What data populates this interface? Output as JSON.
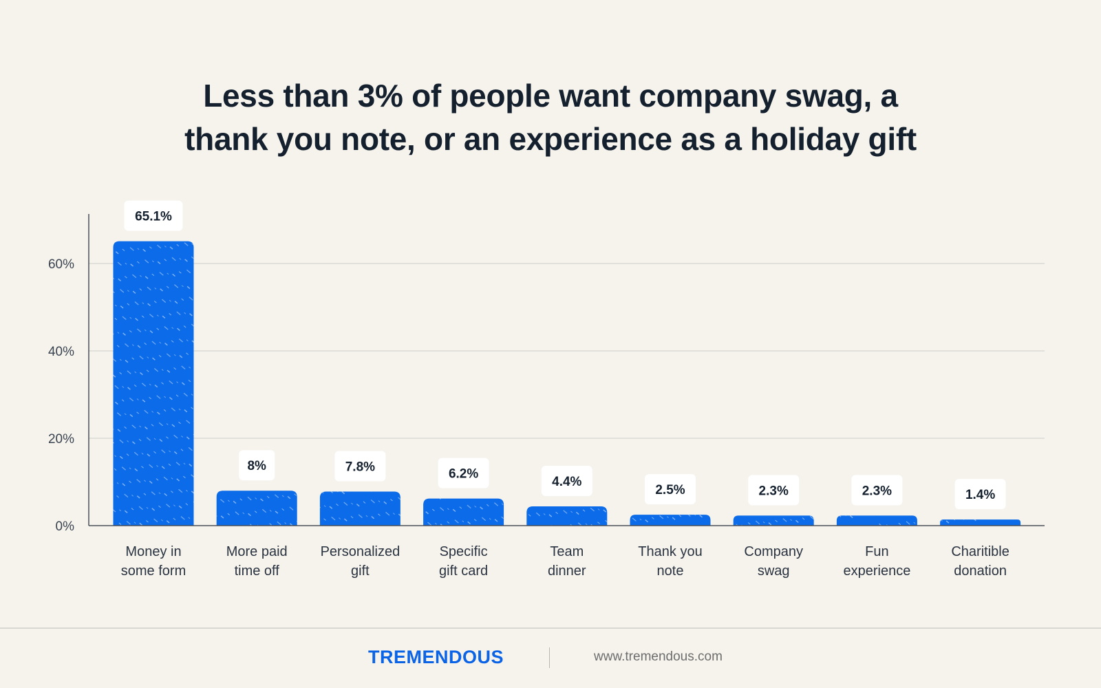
{
  "header": {
    "title_line1": "Less than 3% of people want company swag, a",
    "title_line2": "thank you note, or an experience as a holiday gift"
  },
  "footer": {
    "brand": "TREMENDOUS",
    "url": "www.tremendous.com"
  },
  "colors": {
    "background": "#f6f3ed",
    "bar": "#0b6be8",
    "text": "#14202e",
    "brand": "#0b63e5",
    "gridline": "#d6d4cf"
  },
  "chart_data": {
    "type": "bar",
    "title": "Less than 3% of people want company swag, a thank you note, or an experience as a holiday gift",
    "categories": [
      [
        "Money in",
        "some form"
      ],
      [
        "More paid",
        "time off"
      ],
      [
        "Personalized",
        "gift"
      ],
      [
        "Specific",
        "gift card"
      ],
      [
        "Team",
        "dinner"
      ],
      [
        "Thank you",
        "note"
      ],
      [
        "Company",
        "swag"
      ],
      [
        "Fun",
        "experience"
      ],
      [
        "Charitible",
        "donation"
      ]
    ],
    "values": [
      65.1,
      8,
      7.8,
      6.2,
      4.4,
      2.5,
      2.3,
      2.3,
      1.4
    ],
    "data_labels": [
      "65.1%",
      "8%",
      "7.8%",
      "6.2%",
      "4.4%",
      "2.5%",
      "2.3%",
      "2.3%",
      "1.4%"
    ],
    "y_ticks": [
      0,
      20,
      40,
      60
    ],
    "y_tick_labels": [
      "0%",
      "20%",
      "40%",
      "60%"
    ],
    "ylim": [
      0,
      70
    ],
    "xlabel": "",
    "ylabel": "",
    "grid": true
  }
}
